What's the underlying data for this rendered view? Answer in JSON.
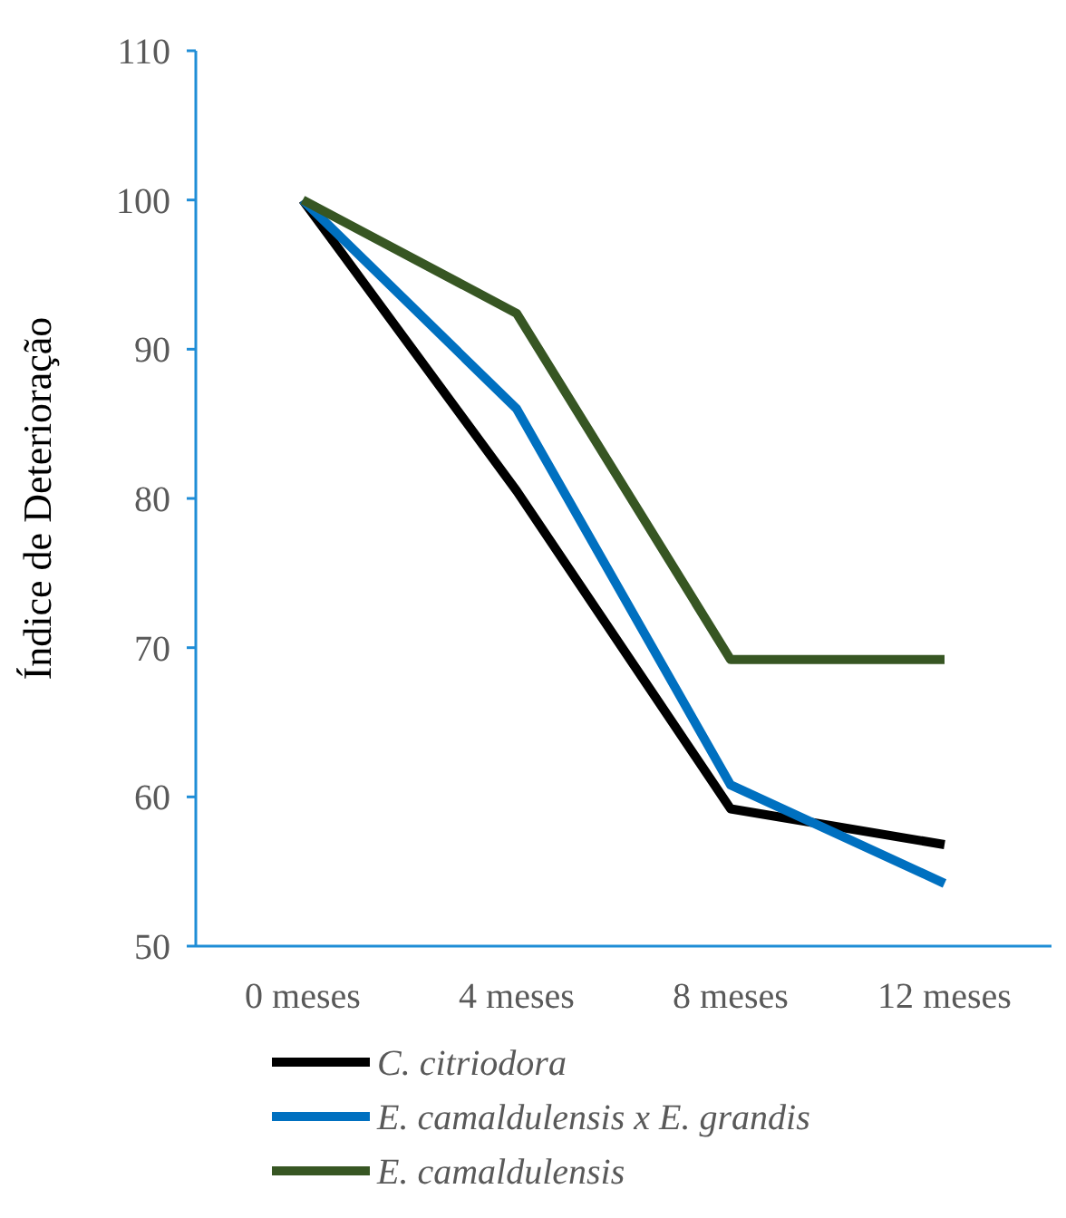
{
  "chart_data": {
    "type": "line",
    "ylabel": "Índice de Deterioração",
    "categories": [
      "0 meses",
      "4 meses",
      "8 meses",
      "12 meses"
    ],
    "series": [
      {
        "name": "C. citriodora",
        "color": "#000000",
        "values": [
          100,
          80.5,
          59.2,
          56.8
        ]
      },
      {
        "name": "E. camaldulensis x E. grandis",
        "color": "#0070c0",
        "values": [
          100,
          86,
          60.8,
          54.2
        ]
      },
      {
        "name": "E. camaldulensis",
        "color": "#375623",
        "values": [
          100,
          92.4,
          69.2,
          69.2
        ]
      }
    ],
    "ylim": [
      50,
      110
    ],
    "yticks": [
      50,
      60,
      70,
      80,
      90,
      100,
      110
    ],
    "grid": false,
    "legend": "bottom",
    "marker": "none",
    "line_style": "solid"
  }
}
